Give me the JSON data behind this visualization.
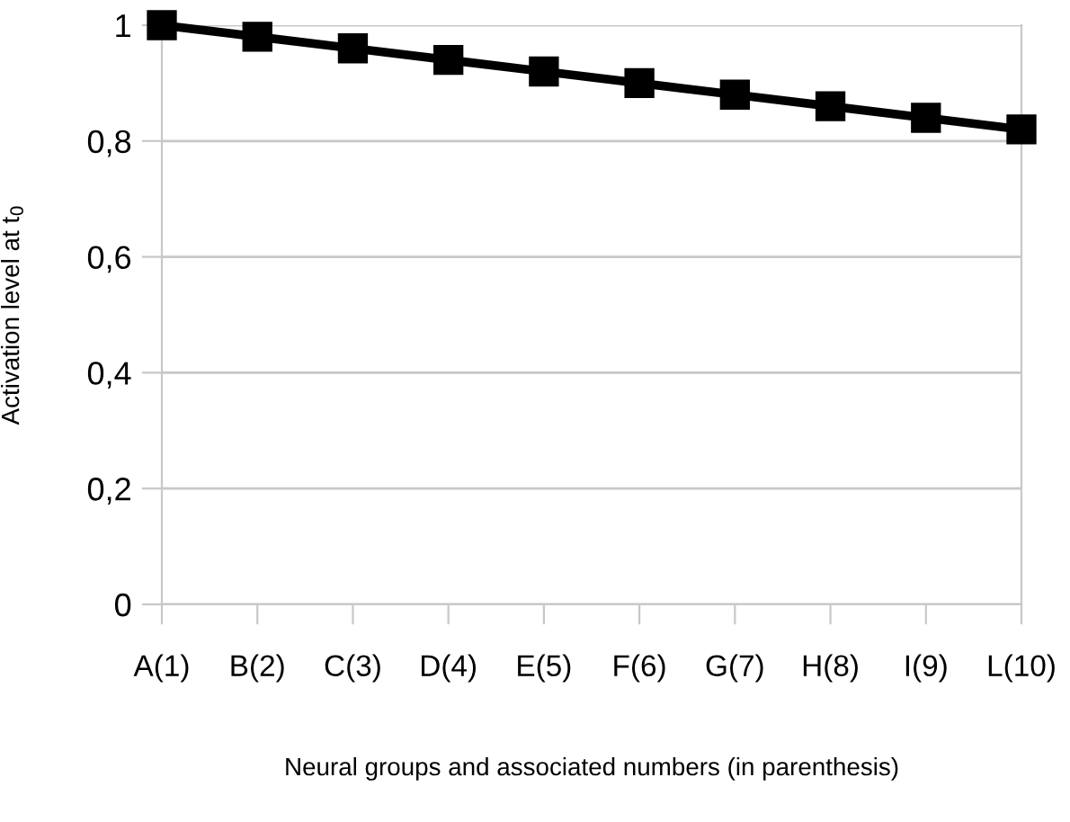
{
  "chart_data": {
    "type": "line",
    "xlabel": "Neural groups and associated numbers (in parenthesis)",
    "ylabel": "Activation level at t$_{0}$",
    "categories": [
      "A(1)",
      "B(2)",
      "C(3)",
      "D(4)",
      "E(5)",
      "F(6)",
      "G(7)",
      "H(8)",
      "I(9)",
      "L(10)"
    ],
    "series": [
      {
        "color": "#000000",
        "values": [
          1,
          0.98,
          0.96,
          0.94,
          0.92,
          0.9,
          0.88,
          0.86,
          0.84,
          0.82
        ]
      }
    ],
    "ylim": [
      0,
      1
    ],
    "yticks": [
      0,
      {
        "value": 0.2,
        "label": "0,2"
      },
      {
        "value": 0.4,
        "label": "0,4"
      },
      {
        "value": 0.6,
        "label": "0,6"
      },
      {
        "value": 0.8,
        "label": "0,8"
      },
      1
    ],
    "grid": "y",
    "marker": "square",
    "line_style": "solid"
  }
}
